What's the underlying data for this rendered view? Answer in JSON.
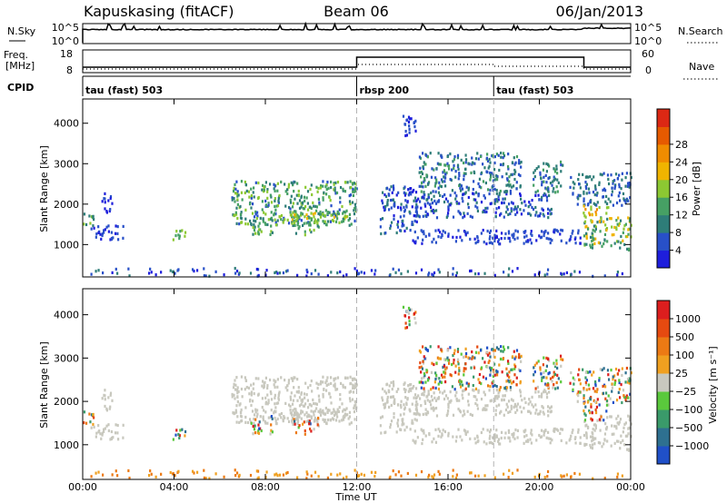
{
  "header": {
    "station": "Kapuskasing (fitACF)",
    "beam": "Beam 06",
    "date": "06/Jan/2013"
  },
  "panels": {
    "nsky": {
      "label": "N.Sky",
      "ticks_left": [
        "10^5",
        "10^0"
      ],
      "ticks_right": [
        "10^5",
        "10^0"
      ],
      "right_label": "N.Search"
    },
    "freq": {
      "label_line1": "Freq.",
      "label_line2": "[MHz]",
      "ticks_left": [
        "18",
        "8"
      ],
      "ticks_right": [
        "60",
        "0"
      ],
      "right_label": "Nave"
    },
    "cpid": {
      "label": "CPID",
      "segments": [
        {
          "name": "tau (fast) 503",
          "start_hour": 0
        },
        {
          "name": "rbsp 200",
          "start_hour": 12
        },
        {
          "name": "tau (fast) 503",
          "start_hour": 18
        }
      ]
    }
  },
  "chart_data": {
    "type": "heatmap",
    "x_range_hours": [
      0,
      24
    ],
    "x_ticks": [
      "00:00",
      "04:00",
      "08:00",
      "12:00",
      "16:00",
      "20:00",
      "00:00"
    ],
    "xlabel": "Time UT",
    "y_range_km": [
      200,
      4600
    ],
    "y_ticks": [
      "1000",
      "2000",
      "3000",
      "4000"
    ],
    "ylabel": "Slant Range [km]",
    "mode_change_hours": [
      12,
      18
    ],
    "power": {
      "colorbar_label": "Power [dB]",
      "colorbar_ticks": [
        "4",
        "8",
        "12",
        "16",
        "20",
        "24",
        "28"
      ],
      "colors": [
        "#1e1edc",
        "#2850c8",
        "#2e7d78",
        "#46a064",
        "#8cc832",
        "#f0b400",
        "#f08c00",
        "#e65a00",
        "#dc2814"
      ]
    },
    "velocity": {
      "colorbar_label": "Velocity [m s⁻¹]",
      "colorbar_ticks": [
        "1000",
        "500",
        "100",
        "25",
        "−25",
        "−100",
        "−500",
        "−1000"
      ],
      "colors": [
        "#2050c8",
        "#2e7090",
        "#3a9a6a",
        "#5ac83c",
        "#c8c8be",
        "#f0a020",
        "#ec7a14",
        "#e64a10",
        "#dc1e1e"
      ],
      "ground_scatter_color": "#c8c8be"
    },
    "freq_mhz": [
      {
        "start_hour": 0,
        "end_hour": 12,
        "value": 10.4
      },
      {
        "start_hour": 12,
        "end_hour": 21.95,
        "value": 14.8
      },
      {
        "start_hour": 21.95,
        "end_hour": 24,
        "value": 10.4
      }
    ],
    "echo_regions": [
      {
        "h0": 0.0,
        "h1": 0.5,
        "r0": 1450,
        "r1": 1850,
        "pw": [
          10,
          20
        ],
        "kind": "ion"
      },
      {
        "h0": 0.3,
        "h1": 1.8,
        "r0": 1150,
        "r1": 1500,
        "pw": [
          4,
          10
        ],
        "kind": "gs"
      },
      {
        "h0": 0.8,
        "h1": 1.3,
        "r0": 1800,
        "r1": 2300,
        "pw": [
          4,
          8
        ],
        "kind": "gs"
      },
      {
        "h0": 3.9,
        "h1": 4.5,
        "r0": 1150,
        "r1": 1450,
        "pw": [
          12,
          22
        ],
        "kind": "ion"
      },
      {
        "h0": 6.5,
        "h1": 12.0,
        "r0": 1500,
        "r1": 2600,
        "pw": [
          8,
          22
        ],
        "kind": "gs"
      },
      {
        "h0": 8.5,
        "h1": 11.8,
        "r0": 1550,
        "r1": 1850,
        "pw": [
          16,
          24
        ],
        "kind": "gs"
      },
      {
        "h0": 7.3,
        "h1": 8.3,
        "r0": 1250,
        "r1": 1700,
        "pw": [
          12,
          22
        ],
        "kind": "ion"
      },
      {
        "h0": 9.2,
        "h1": 10.3,
        "r0": 1250,
        "r1": 1650,
        "pw": [
          10,
          20
        ],
        "kind": "ion"
      },
      {
        "h0": 13.0,
        "h1": 14.6,
        "r0": 1300,
        "r1": 2500,
        "pw": [
          4,
          12
        ],
        "kind": "gs"
      },
      {
        "h0": 14.0,
        "h1": 14.6,
        "r0": 3700,
        "r1": 4300,
        "pw": [
          4,
          10
        ],
        "kind": "ion"
      },
      {
        "h0": 14.4,
        "h1": 21.8,
        "r0": 1050,
        "r1": 1400,
        "pw": [
          4,
          10
        ],
        "kind": "gs"
      },
      {
        "h0": 14.5,
        "h1": 20.5,
        "r0": 1700,
        "r1": 2300,
        "pw": [
          4,
          12
        ],
        "kind": "gs"
      },
      {
        "h0": 14.7,
        "h1": 19.2,
        "r0": 2300,
        "r1": 3300,
        "pw": [
          6,
          16
        ],
        "kind": "ion"
      },
      {
        "h0": 19.7,
        "h1": 21.0,
        "r0": 2300,
        "r1": 3100,
        "pw": [
          8,
          16
        ],
        "kind": "ion"
      },
      {
        "h0": 21.3,
        "h1": 24.0,
        "r0": 2000,
        "r1": 2800,
        "pw": [
          6,
          14
        ],
        "kind": "ion"
      },
      {
        "h0": 21.9,
        "h1": 24.0,
        "r0": 900,
        "r1": 1700,
        "pw": [
          10,
          26
        ],
        "kind": "gs"
      },
      {
        "h0": 21.9,
        "h1": 23.0,
        "r0": 1600,
        "r1": 2000,
        "pw": [
          18,
          28
        ],
        "kind": "ion"
      }
    ]
  }
}
